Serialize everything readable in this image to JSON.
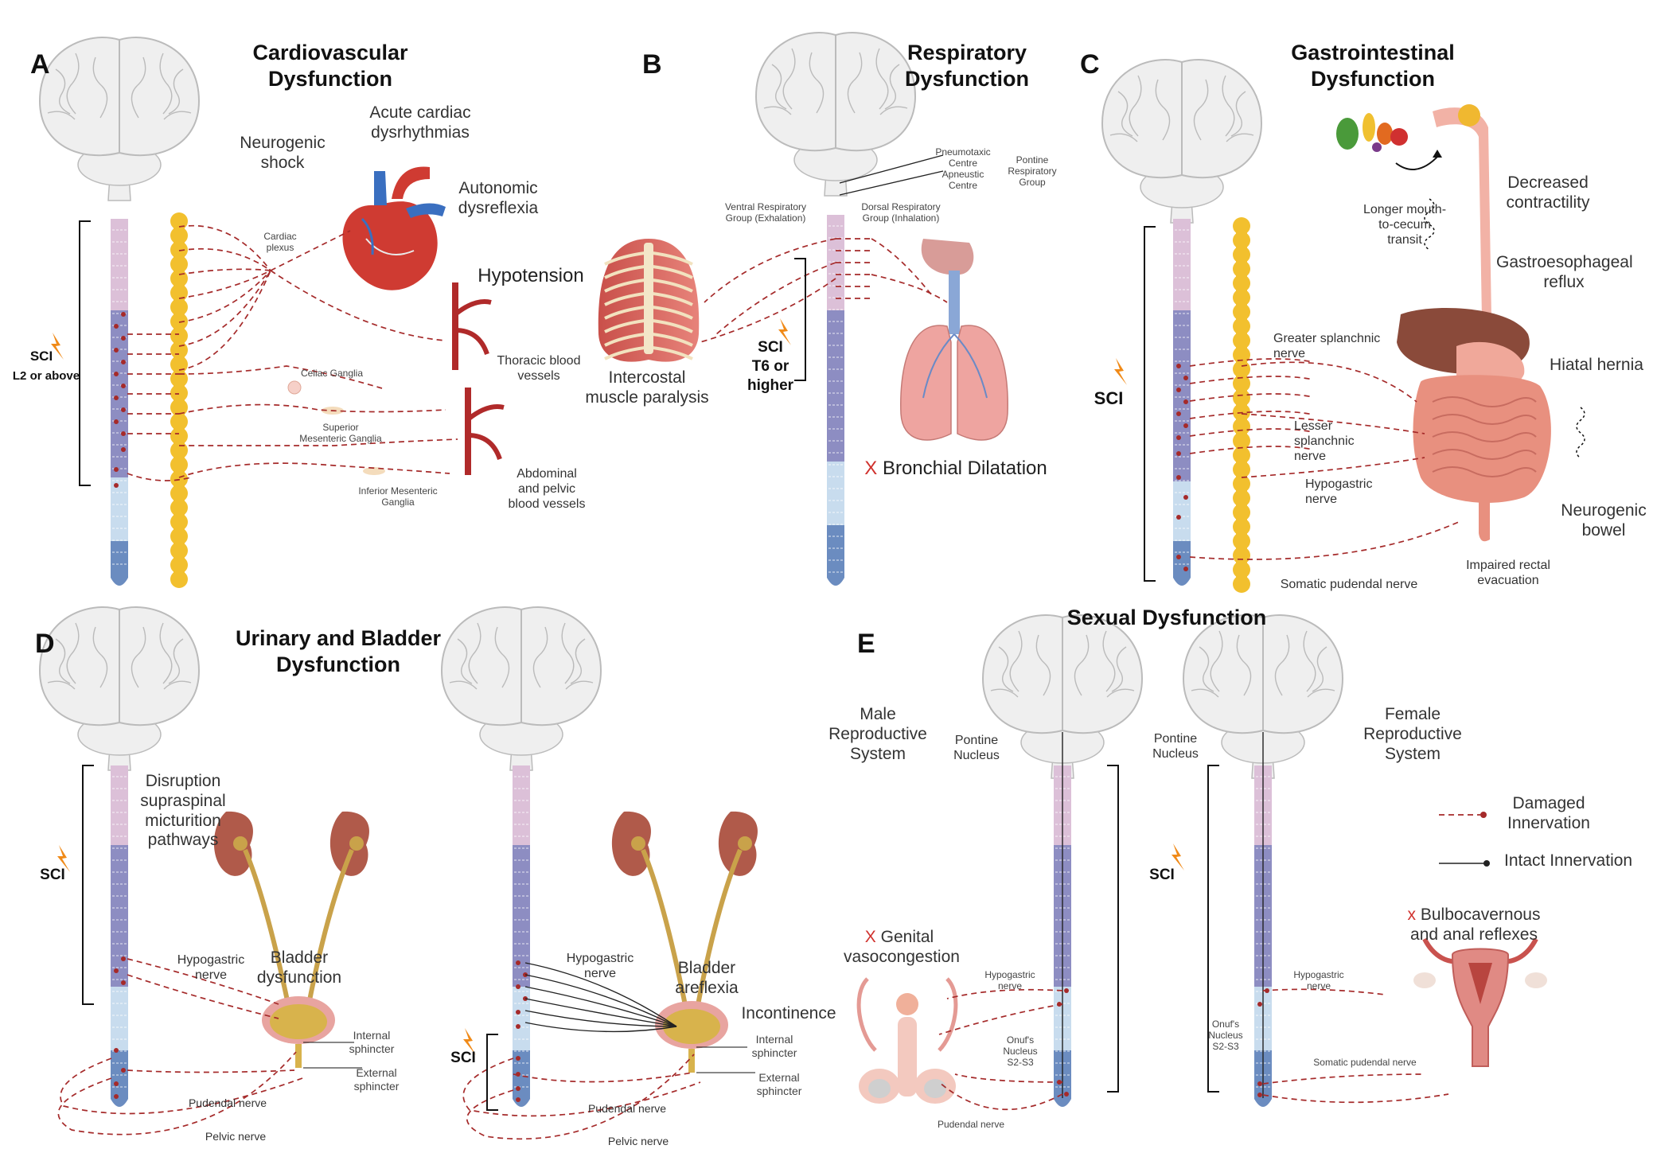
{
  "panels": {
    "a": {
      "letter": "A",
      "title": "Cardiovascular\nDysfunction",
      "neurogenic_shock": "Neurogenic\nshock",
      "acute_cardiac": "Acute cardiac\ndysrhythmias",
      "autonomic": "Autonomic\ndysreflexia",
      "hypotension": "Hypotension",
      "cardiac_plexus": "Cardiac\nplexus",
      "thoracic_vessels": "Thoracic blood\nvessels",
      "celiac": "Celiac Ganglia",
      "superior_mesenteric": "Superior\nMesenteric Ganglia",
      "inferior_mesenteric": "Inferior Mesenteric\nGanglia",
      "abdominal_vessels": "Abdominal\nand pelvic\nblood vessels",
      "sci": "SCI",
      "sci_level": "L2 or above"
    },
    "b": {
      "letter": "B",
      "title": "Respiratory\nDysfunction",
      "pneumotaxic": "Pneumotaxic\nCentre\nApneustic\nCentre",
      "pontine_group": "Pontine\nRespiratory\nGroup",
      "ventral_group": "Ventral Respiratory\nGroup (Exhalation)",
      "dorsal_group": "Dorsal Respiratory\nGroup (Inhalation)",
      "intercostal": "Intercostal\nmuscle paralysis",
      "sci": "SCI\nT6 or\nhigher",
      "bronchial_x": "X",
      "bronchial": "Bronchial Dilatation"
    },
    "c": {
      "letter": "C",
      "title": "Gastrointestinal\nDysfunction",
      "longer_transit": "Longer mouth-\nto-cecum\ntransit",
      "decreased_contractility": "Decreased\ncontractility",
      "gerd": "Gastroesophageal\nreflux",
      "greater_splanchnic": "Greater splanchnic\nnerve",
      "hiatal": "Hiatal hernia",
      "lesser_splanchnic": "Lesser\nsplanchnic\nnerve",
      "hypogastric": "Hypogastric\nnerve",
      "neurogenic_bowel": "Neurogenic\nbowel",
      "impaired_rectal": "Impaired rectal\nevacuation",
      "somatic_pudendal": "Somatic pudendal nerve",
      "sci": "SCI"
    },
    "d": {
      "letter": "D",
      "title": "Urinary and Bladder\nDysfunction",
      "disruption": "Disruption\nsupraspinal\nmicturition\npathways",
      "sci": "SCI",
      "hypogastric_left": "Hypogastric\nnerve",
      "bladder_dysfunction": "Bladder\ndysfunction",
      "internal_left": "Internal\nsphincter",
      "external_left": "External\nsphincter",
      "pudendal_left": "Pudendal nerve",
      "pelvic_left": "Pelvic nerve",
      "hypogastric_right": "Hypogastric\nnerve",
      "bladder_areflexia": "Bladder\nareflexia",
      "incontinence": "Incontinence",
      "internal_right": "Internal\nsphincter",
      "external_right": "External\nsphincter",
      "pudendal_right": "Pudendal nerve",
      "pelvic_right": "Pelvic nerve",
      "sci_right": "SCI"
    },
    "e": {
      "letter": "E",
      "title": "Sexual Dysfunction",
      "male": "Male\nReproductive\nSystem",
      "pontine_left": "Pontine\nNucleus",
      "pontine_right": "Pontine\nNucleus",
      "female": "Female\nReproductive\nSystem",
      "damaged": "Damaged\nInnervation",
      "intact": "Intact Innervation",
      "sci": "SCI",
      "genital_x": "X",
      "genital": "Genital\nvasocongestion",
      "hypogastric_male": "Hypogastric\nnerve",
      "onuf_male": "Onuf's\nNucleus\nS2-S3",
      "pudendal_male": "Pudendal nerve",
      "bulbo_x": "x",
      "bulbo": "Bulbocavernous\nand anal reflexes",
      "hypogastric_female": "Hypogastric\nnerve",
      "onuf_female": "Onuf's\nNucleus\nS2-S3",
      "somatic_female": "Somatic pudendal nerve"
    }
  },
  "colors": {
    "cervical": "#dcc0d8",
    "thoracic": "#8d8dc2",
    "lumbar": "#c8dcee",
    "sacral": "#6b8cc0",
    "sympathetic_chain": "#f2c02e",
    "damaged_nerve": "#a52a2a",
    "brain": "#efefef",
    "heart_red": "#cf3b32",
    "vessel_blue": "#3a6fc0",
    "organ_pink": "#eea4a0",
    "kidney": "#b05a4a",
    "ureter": "#c9a24a",
    "sci_bolt": "#f08a18",
    "brain_outline": "#bbbbbb"
  }
}
